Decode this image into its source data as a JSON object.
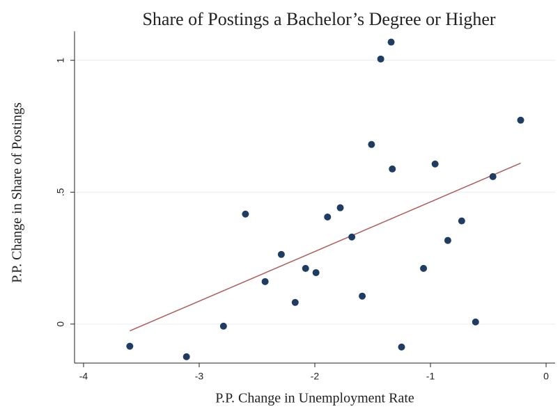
{
  "chart_data": {
    "type": "scatter",
    "title": "Share of Postings a Bachelor’s Degree or Higher",
    "x_label": "P.P. Change in Unemployment Rate",
    "y_label": "P.P. Change in Share of Postings",
    "x": [
      -3.6,
      -3.11,
      -2.79,
      -2.6,
      -2.29,
      -2.43,
      -2.17,
      -2.08,
      -1.99,
      -1.89,
      -1.78,
      -1.68,
      -1.59,
      -1.51,
      -1.43,
      -1.34,
      -1.25,
      -1.33,
      -1.06,
      -0.96,
      -0.85,
      -0.73,
      -0.61,
      -0.46,
      -0.22
    ],
    "y": [
      -0.084,
      -0.124,
      -0.008,
      0.417,
      0.264,
      0.161,
      0.082,
      0.211,
      0.195,
      0.406,
      0.441,
      0.33,
      0.106,
      0.681,
      1.005,
      1.069,
      -0.087,
      0.588,
      0.211,
      0.607,
      0.317,
      0.391,
      0.008,
      0.559,
      0.773
    ],
    "color": "#1f3d63",
    "fit": {
      "x": [
        -3.6,
        -0.22
      ],
      "y": [
        -0.026,
        0.61
      ],
      "color": "#b05a5a"
    },
    "xlim": [
      -4.078,
      0.078
    ],
    "ylim": [
      -0.148,
      1.11
    ],
    "xticks": [
      -4,
      -3,
      -2,
      -1,
      0
    ],
    "yticks": [
      0,
      {
        "value": 0.5,
        "label": ".5"
      },
      1
    ],
    "grid": true
  }
}
